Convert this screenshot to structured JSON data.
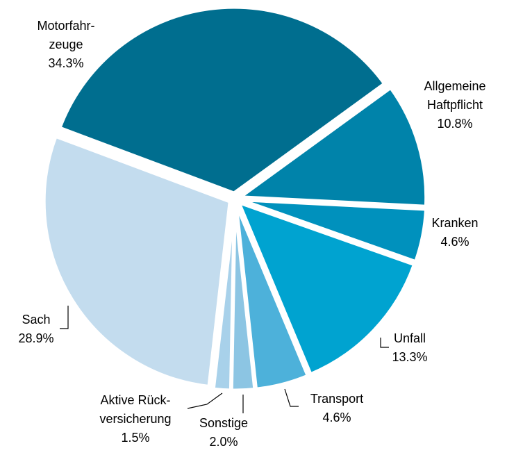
{
  "chart_data": {
    "type": "pie",
    "categories": [
      "Allgemeine\nHaftpflicht",
      "Kranken",
      "Unfall",
      "Transport",
      "Sonstige",
      "Aktive Rück-\nversicherung",
      "Sach",
      "Motorfahr-\nzeuge"
    ],
    "values": [
      10.8,
      4.6,
      13.3,
      4.6,
      2.0,
      1.5,
      28.9,
      34.3
    ],
    "value_labels": [
      "10.8%",
      "4.6%",
      "13.3%",
      "4.6%",
      "2.0%",
      "1.5%",
      "28.9%",
      "34.3%"
    ],
    "colors": [
      "#0083aa",
      "#0091bd",
      "#00a3d0",
      "#4db1da",
      "#8cc5e3",
      "#a8d1ea",
      "#c3dcee",
      "#006e8f"
    ]
  }
}
